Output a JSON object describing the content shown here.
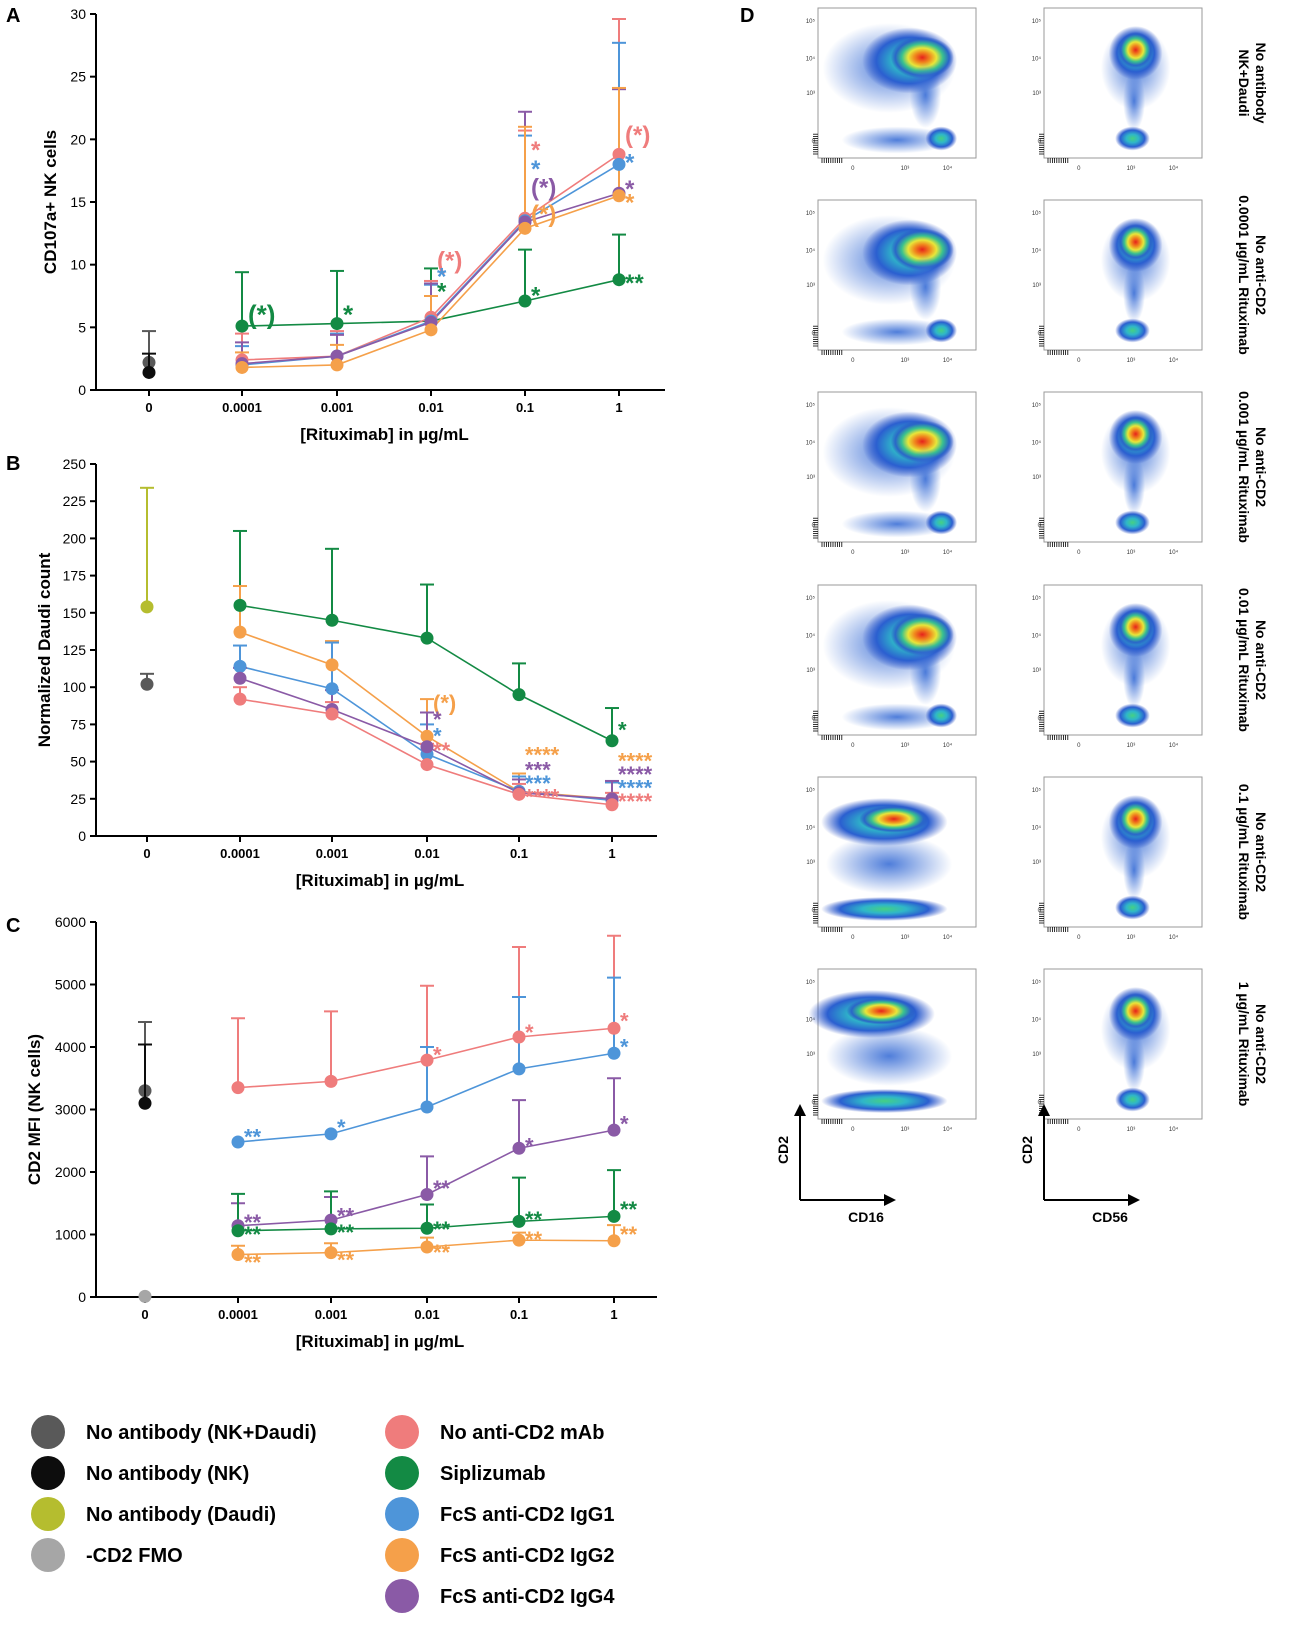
{
  "colors": {
    "nk_daudi": "#595959",
    "nk": "#0d0d0d",
    "daudi": "#b5bd2f",
    "fmo": "#a6a6a6",
    "no_anti_cd2": "#ef7c7c",
    "siplizumab": "#138a44",
    "igg1": "#4e95d9",
    "igg2": "#f5a04a",
    "igg4": "#8a5aa6",
    "axis": "#000000"
  },
  "legend": {
    "items": [
      {
        "key": "nk_daudi",
        "label": "No antibody (NK+Daudi)"
      },
      {
        "key": "nk",
        "label": "No antibody (NK)"
      },
      {
        "key": "daudi",
        "label": "No antibody (Daudi)"
      },
      {
        "key": "fmo",
        "label": "-CD2 FMO"
      },
      {
        "key": "no_anti_cd2",
        "label": "No anti-CD2 mAb"
      },
      {
        "key": "siplizumab",
        "label": "Siplizumab"
      },
      {
        "key": "igg1",
        "label": "FcS anti-CD2 IgG1"
      },
      {
        "key": "igg2",
        "label": "FcS anti-CD2 IgG2"
      },
      {
        "key": "igg4",
        "label": "FcS anti-CD2 IgG4"
      }
    ]
  },
  "chart_data": [
    {
      "panel": "A",
      "type": "line",
      "ylabel": "CD107a+ NK cells",
      "xlabel": "[Rituximab] in µg/mL",
      "categories": [
        "0",
        "0.0001",
        "0.001",
        "0.01",
        "0.1",
        "1"
      ],
      "ylim": [
        0,
        30
      ],
      "yticks": [
        0,
        5,
        10,
        15,
        20,
        25,
        30
      ],
      "controls": [
        {
          "key": "nk_daudi",
          "x": "0",
          "value": 2.2,
          "err": 4.7
        },
        {
          "key": "nk",
          "x": "0",
          "value": 1.4,
          "err": 2.9
        }
      ],
      "series": [
        {
          "key": "siplizumab",
          "values": [
            null,
            5.1,
            5.3,
            5.5,
            7.1,
            8.8
          ],
          "errs": [
            null,
            9.4,
            9.5,
            9.7,
            11.2,
            12.4
          ]
        },
        {
          "key": "no_anti_cd2",
          "values": [
            null,
            2.4,
            2.7,
            5.8,
            13.7,
            18.8
          ],
          "errs": [
            null,
            4.5,
            4.7,
            8.7,
            20.7,
            29.6
          ]
        },
        {
          "key": "igg1",
          "values": [
            null,
            2.0,
            2.7,
            5.5,
            13.5,
            18.0
          ],
          "errs": [
            null,
            3.5,
            4.5,
            8.4,
            20.3,
            27.7
          ]
        },
        {
          "key": "igg4",
          "values": [
            null,
            2.1,
            2.7,
            5.4,
            13.4,
            15.7
          ],
          "errs": [
            null,
            3.8,
            4.4,
            8.5,
            22.2,
            24.0
          ]
        },
        {
          "key": "igg2",
          "values": [
            null,
            1.8,
            2.0,
            4.8,
            12.9,
            15.5
          ],
          "errs": [
            null,
            3.0,
            3.6,
            7.5,
            21.0,
            24.1
          ]
        }
      ],
      "annotations": [
        {
          "x": "0.0001",
          "y": 6.1,
          "text": "(*)",
          "key": "siplizumab",
          "size": 26
        },
        {
          "x": "0.001",
          "y": 6.1,
          "text": "*",
          "key": "siplizumab",
          "size": 26
        },
        {
          "x": "0.01",
          "y": 10.5,
          "text": "(*)",
          "key": "no_anti_cd2",
          "size": 24
        },
        {
          "x": "0.01",
          "y": 9.2,
          "text": "*",
          "key": "igg1",
          "size": 24
        },
        {
          "x": "0.01",
          "y": 8.0,
          "text": "*",
          "key": "siplizumab",
          "size": 24
        },
        {
          "x": "0.1",
          "y": 19.3,
          "text": "*",
          "key": "no_anti_cd2",
          "size": 24
        },
        {
          "x": "0.1",
          "y": 17.8,
          "text": "*",
          "key": "igg1",
          "size": 24
        },
        {
          "x": "0.1",
          "y": 16.3,
          "text": "(*)",
          "key": "igg4",
          "size": 24
        },
        {
          "x": "0.1",
          "y": 14.2,
          "text": "(*)",
          "key": "igg2",
          "size": 24
        },
        {
          "x": "0.1",
          "y": 7.7,
          "text": "*",
          "key": "siplizumab",
          "size": 24
        },
        {
          "x": "1",
          "y": 20.5,
          "text": "(*)",
          "key": "no_anti_cd2",
          "size": 24
        },
        {
          "x": "1",
          "y": 18.3,
          "text": "*",
          "key": "igg1",
          "size": 24
        },
        {
          "x": "1",
          "y": 16.2,
          "text": "*",
          "key": "igg4",
          "size": 24
        },
        {
          "x": "1",
          "y": 15.1,
          "text": "*",
          "key": "igg2",
          "size": 24
        },
        {
          "x": "1",
          "y": 8.7,
          "text": "**",
          "key": "siplizumab",
          "size": 24
        }
      ]
    },
    {
      "panel": "B",
      "type": "line",
      "ylabel": "Normalized Daudi count",
      "xlabel": "[Rituximab] in µg/mL",
      "categories": [
        "0",
        "0.0001",
        "0.001",
        "0.01",
        "0.1",
        "1"
      ],
      "ylim": [
        0,
        250
      ],
      "yticks": [
        0,
        25,
        50,
        75,
        100,
        125,
        150,
        175,
        200,
        225,
        250
      ],
      "controls": [
        {
          "key": "daudi",
          "x": "0",
          "value": 154,
          "err": 234
        },
        {
          "key": "nk_daudi",
          "x": "0",
          "value": 102,
          "err": 109
        }
      ],
      "series": [
        {
          "key": "siplizumab",
          "values": [
            null,
            155,
            145,
            133,
            95,
            64
          ],
          "errs": [
            null,
            205,
            193,
            169,
            116,
            86
          ]
        },
        {
          "key": "igg2",
          "values": [
            null,
            137,
            115,
            67,
            30,
            25
          ],
          "errs": [
            null,
            168,
            131,
            92,
            42,
            36
          ]
        },
        {
          "key": "igg1",
          "values": [
            null,
            114,
            99,
            55,
            30,
            24
          ],
          "errs": [
            null,
            128,
            130,
            75,
            40,
            36
          ]
        },
        {
          "key": "igg4",
          "values": [
            null,
            106,
            85,
            60,
            29,
            25
          ],
          "errs": [
            null,
            113,
            98,
            83,
            38,
            37
          ]
        },
        {
          "key": "no_anti_cd2",
          "values": [
            null,
            92,
            82,
            48,
            28,
            21
          ],
          "errs": [
            null,
            100,
            90,
            62,
            35,
            29
          ]
        }
      ],
      "annotations": [
        {
          "x": "0.01",
          "y": 91,
          "text": "(*)",
          "key": "igg2",
          "size": 22
        },
        {
          "x": "0.01",
          "y": 80,
          "text": "*",
          "key": "igg4",
          "size": 22
        },
        {
          "x": "0.01",
          "y": 69,
          "text": "*",
          "key": "igg1",
          "size": 22
        },
        {
          "x": "0.01",
          "y": 59,
          "text": "**",
          "key": "no_anti_cd2",
          "size": 22
        },
        {
          "x": "0.1",
          "y": 56,
          "text": "****",
          "key": "igg2",
          "size": 22
        },
        {
          "x": "0.1",
          "y": 46,
          "text": "***",
          "key": "igg4",
          "size": 22
        },
        {
          "x": "0.1",
          "y": 37,
          "text": "***",
          "key": "igg1",
          "size": 22
        },
        {
          "x": "0.1",
          "y": 28,
          "text": "****",
          "key": "no_anti_cd2",
          "size": 22
        },
        {
          "x": "1",
          "y": 73,
          "text": "*",
          "key": "siplizumab",
          "size": 22
        },
        {
          "x": "1",
          "y": 52,
          "text": "****",
          "key": "igg2",
          "size": 22
        },
        {
          "x": "1",
          "y": 43,
          "text": "****",
          "key": "igg4",
          "size": 22
        },
        {
          "x": "1",
          "y": 34,
          "text": "****",
          "key": "igg1",
          "size": 22
        },
        {
          "x": "1",
          "y": 25,
          "text": "****",
          "key": "no_anti_cd2",
          "size": 22
        }
      ]
    },
    {
      "panel": "C",
      "type": "line",
      "ylabel": "CD2 MFI (NK cells)",
      "xlabel": "[Rituximab] in µg/mL",
      "categories": [
        "0",
        "0.0001",
        "0.001",
        "0.01",
        "0.1",
        "1"
      ],
      "ylim": [
        0,
        6000
      ],
      "yticks": [
        0,
        1000,
        2000,
        3000,
        4000,
        5000,
        6000
      ],
      "controls": [
        {
          "key": "nk_daudi",
          "x": "0",
          "value": 3300,
          "err": 4400
        },
        {
          "key": "nk",
          "x": "0",
          "value": 3100,
          "err": 4040
        },
        {
          "key": "fmo",
          "x": "0",
          "value": 10,
          "err": null
        }
      ],
      "series": [
        {
          "key": "no_anti_cd2",
          "values": [
            null,
            3350,
            3450,
            3790,
            4160,
            4300
          ],
          "errs": [
            null,
            4460,
            4570,
            4980,
            5600,
            5780
          ]
        },
        {
          "key": "igg1",
          "values": [
            null,
            2480,
            2610,
            3040,
            3650,
            3900
          ],
          "errs": [
            null,
            null,
            null,
            4000,
            4800,
            5110
          ]
        },
        {
          "key": "igg4",
          "values": [
            null,
            1140,
            1230,
            1640,
            2380,
            2670
          ],
          "errs": [
            null,
            1500,
            1600,
            2250,
            3150,
            3500
          ]
        },
        {
          "key": "siplizumab",
          "values": [
            null,
            1060,
            1090,
            1100,
            1210,
            1290
          ],
          "errs": [
            null,
            1650,
            1690,
            1480,
            1910,
            2030
          ]
        },
        {
          "key": "igg2",
          "values": [
            null,
            680,
            710,
            800,
            910,
            900
          ],
          "errs": [
            null,
            820,
            860,
            950,
            1030,
            1150
          ]
        }
      ],
      "annotations": [
        {
          "x": "0.0001",
          "y": 2600,
          "text": "**",
          "key": "igg1",
          "size": 22
        },
        {
          "x": "0.0001",
          "y": 1230,
          "text": "**",
          "key": "igg4",
          "size": 22
        },
        {
          "x": "0.0001",
          "y": 1040,
          "text": "**",
          "key": "siplizumab",
          "size": 22
        },
        {
          "x": "0.0001",
          "y": 590,
          "text": "**",
          "key": "igg2",
          "size": 22
        },
        {
          "x": "0.001",
          "y": 2750,
          "text": "*",
          "key": "igg1",
          "size": 22
        },
        {
          "x": "0.001",
          "y": 1340,
          "text": "**",
          "key": "igg4",
          "size": 22
        },
        {
          "x": "0.001",
          "y": 1070,
          "text": "**",
          "key": "siplizumab",
          "size": 22
        },
        {
          "x": "0.001",
          "y": 630,
          "text": "**",
          "key": "igg2",
          "size": 22
        },
        {
          "x": "0.01",
          "y": 3910,
          "text": "*",
          "key": "no_anti_cd2",
          "size": 22
        },
        {
          "x": "0.01",
          "y": 1780,
          "text": "**",
          "key": "igg4",
          "size": 22
        },
        {
          "x": "0.01",
          "y": 1120,
          "text": "**",
          "key": "siplizumab",
          "size": 22
        },
        {
          "x": "0.01",
          "y": 750,
          "text": "**",
          "key": "igg2",
          "size": 22
        },
        {
          "x": "0.1",
          "y": 4270,
          "text": "*",
          "key": "no_anti_cd2",
          "size": 22
        },
        {
          "x": "0.1",
          "y": 2460,
          "text": "*",
          "key": "igg4",
          "size": 22
        },
        {
          "x": "0.1",
          "y": 1280,
          "text": "**",
          "key": "siplizumab",
          "size": 22
        },
        {
          "x": "0.1",
          "y": 960,
          "text": "**",
          "key": "igg2",
          "size": 22
        },
        {
          "x": "1",
          "y": 4460,
          "text": "*",
          "key": "no_anti_cd2",
          "size": 22
        },
        {
          "x": "1",
          "y": 4040,
          "text": "*",
          "key": "igg1",
          "size": 22
        },
        {
          "x": "1",
          "y": 2810,
          "text": "*",
          "key": "igg4",
          "size": 22
        },
        {
          "x": "1",
          "y": 1440,
          "text": "**",
          "key": "siplizumab",
          "size": 22
        },
        {
          "x": "1",
          "y": 1040,
          "text": "**",
          "key": "igg2",
          "size": 22
        }
      ]
    },
    {
      "panel": "D",
      "type": "scatter",
      "description_axes": {
        "left_col": {
          "xlabel": "CD16",
          "ylabel": "CD2"
        },
        "right_col": {
          "xlabel": "CD56",
          "ylabel": "CD2"
        }
      },
      "axis_ticks": [
        "0",
        "10³",
        "10⁴",
        "10⁵"
      ],
      "rows": [
        {
          "label_lines": [
            "No antibody",
            "NK+Daudi"
          ],
          "variant": 0
        },
        {
          "label_lines": [
            "No anti-CD2",
            "0.0001 µg/mL Rituximab"
          ],
          "variant": 0
        },
        {
          "label_lines": [
            "No anti-CD2",
            "0.001 µg/mL Rituximab"
          ],
          "variant": 0
        },
        {
          "label_lines": [
            "No anti-CD2",
            "0.01 µg/mL Rituximab"
          ],
          "variant": 1
        },
        {
          "label_lines": [
            "No anti-CD2",
            "0.1 µg/mL Rituximab"
          ],
          "variant": 2
        },
        {
          "label_lines": [
            "No anti-CD2",
            "1 µg/mL Rituximab"
          ],
          "variant": 3
        }
      ]
    }
  ]
}
